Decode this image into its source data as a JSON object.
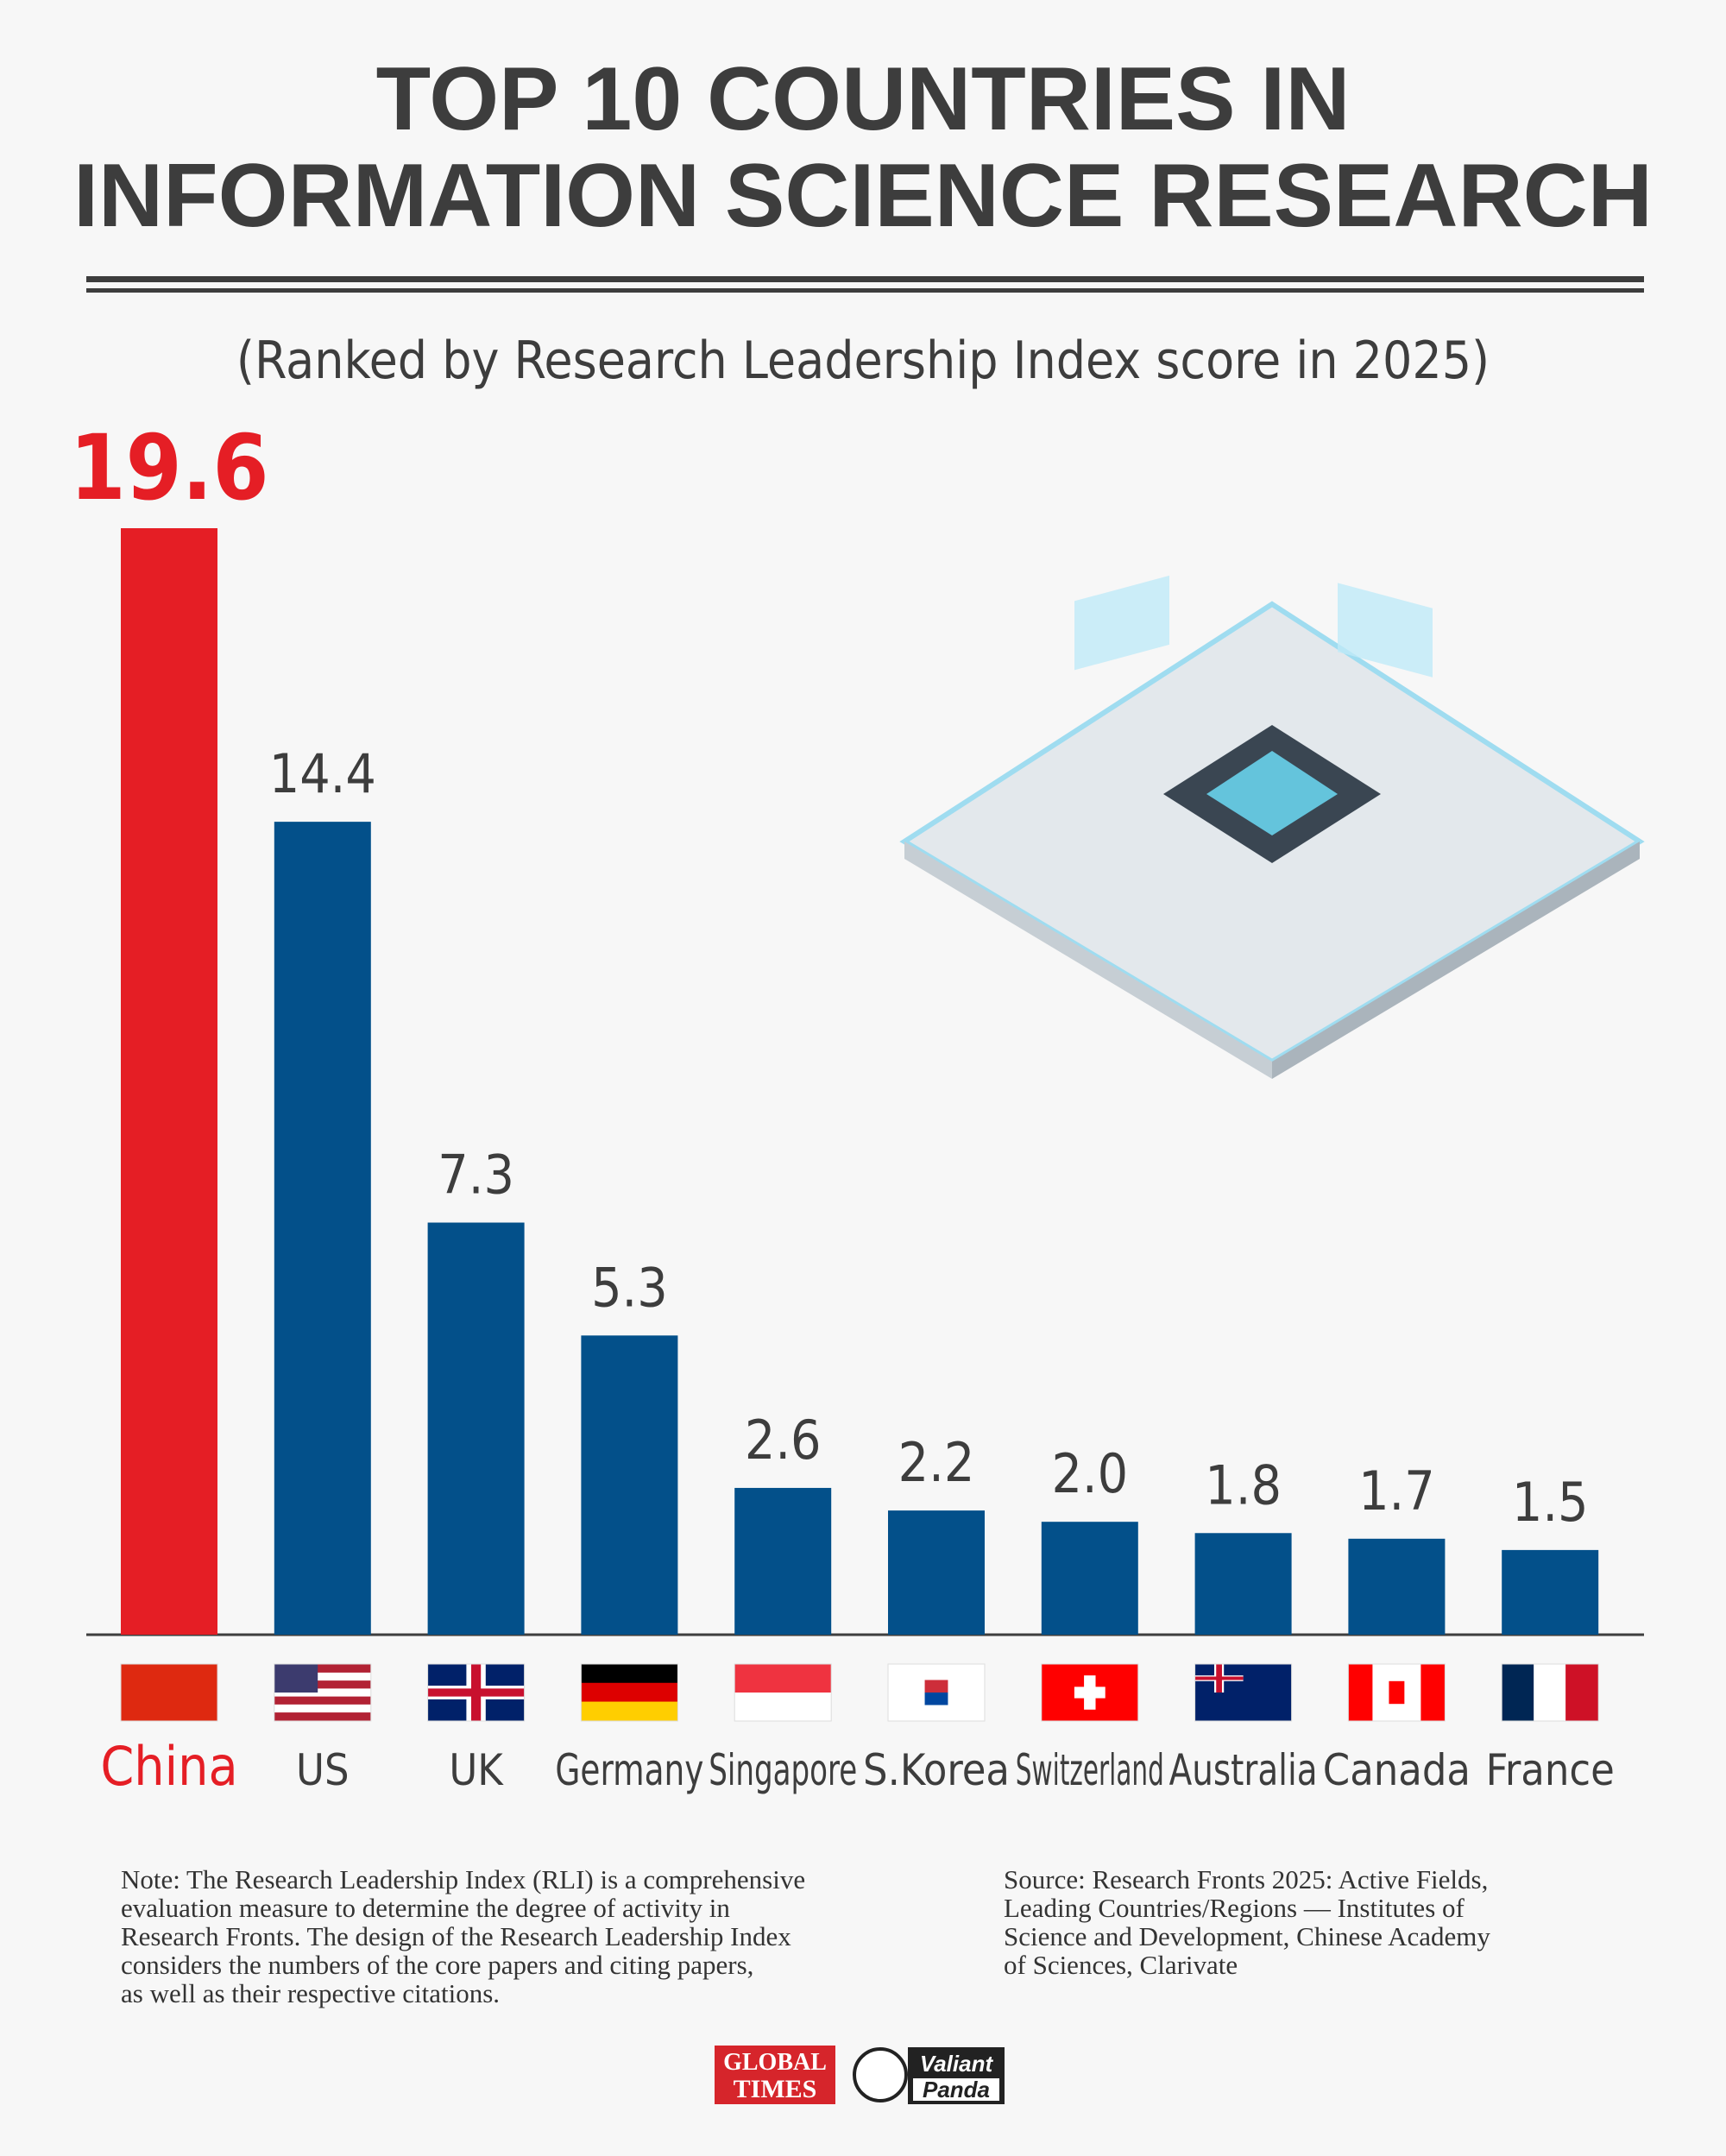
{
  "chart_data": {
    "type": "bar",
    "title": [
      "TOP 10 COUNTRIES IN",
      "INFORMATION SCIENCE RESEARCH"
    ],
    "subtitle": "(Ranked by Research Leadership Index score in 2025)",
    "categories": [
      "China",
      "US",
      "UK",
      "Germany",
      "Singapore",
      "S.Korea",
      "Switzerland",
      "Australia",
      "Canada",
      "France"
    ],
    "values": [
      19.6,
      14.4,
      7.3,
      5.3,
      2.6,
      2.2,
      2.0,
      1.8,
      1.7,
      1.5
    ],
    "value_labels": [
      "19.6",
      "14.4",
      "7.3",
      "5.3",
      "2.6",
      "2.2",
      "2.0",
      "1.8",
      "1.7",
      "1.5"
    ],
    "colors": [
      "#e51e25",
      "#03508a",
      "#03508a",
      "#03508a",
      "#03508a",
      "#03508a",
      "#03508a",
      "#03508a",
      "#03508a",
      "#03508a"
    ]
  },
  "note": [
    "Note: The Research Leadership Index (RLI) is a comprehensive",
    "evaluation measure to determine the degree of activity in",
    "Research Fronts. The design of the Research Leadership Index",
    "considers the numbers of the core papers and citing papers,",
    "as well as their respective citations."
  ],
  "source": [
    "Source: Research Fronts 2025: Active Fields,",
    "Leading Countries/Regions — Institutes of",
    "Science and Development, Chinese Academy",
    "of Sciences, Clarivate"
  ],
  "logos": [
    "GLOBAL",
    "TIMES",
    "Valiant",
    "Panda"
  ]
}
